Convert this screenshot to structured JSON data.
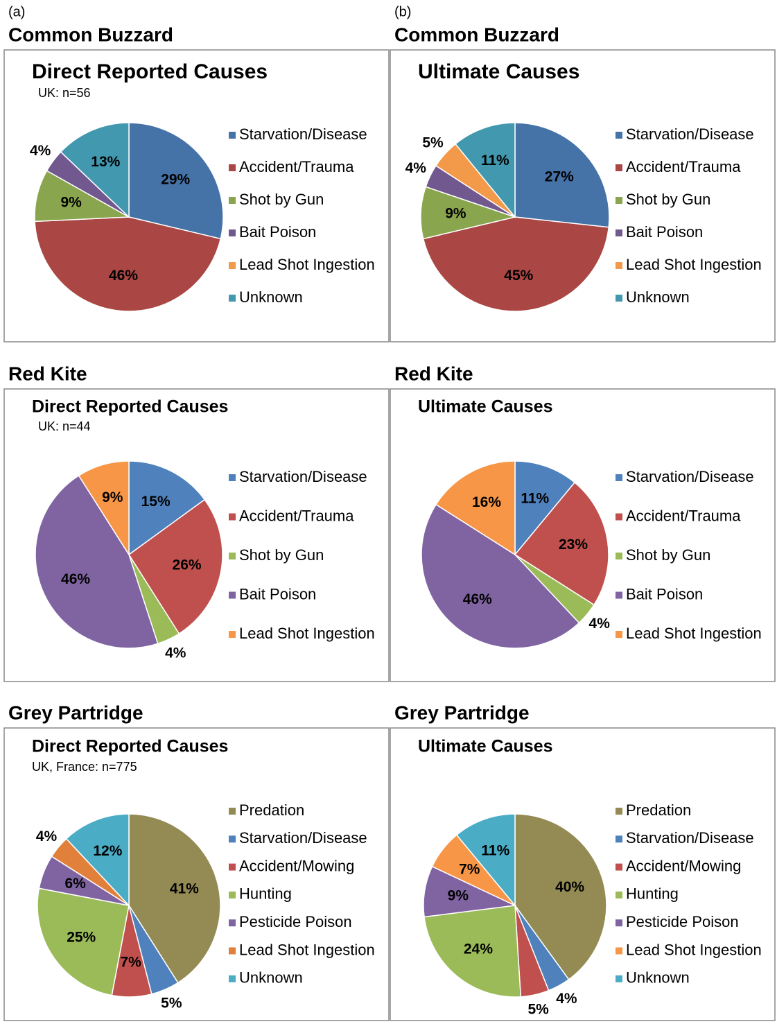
{
  "panels": [
    "(a)",
    "(b)"
  ],
  "chart_data": [
    {
      "type": "pie",
      "heading": "Common Buzzard",
      "title": "Direct Reported Causes",
      "subtitle": "UK: n=56",
      "categories": [
        "Starvation/Disease",
        "Accident/Trauma",
        "Shot by Gun",
        "Bait Poison",
        "Lead Shot Ingestion",
        "Unknown"
      ],
      "values": [
        29,
        46,
        9,
        4,
        0,
        13
      ],
      "value_labels": [
        "29%",
        "46%",
        "9%",
        "4%",
        null,
        "13%"
      ],
      "colors": [
        "#4572a7",
        "#aa4643",
        "#89a54e",
        "#71588f",
        "#f39a4a",
        "#4198af"
      ]
    },
    {
      "type": "pie",
      "heading": "Common Buzzard",
      "title": "Ultimate Causes",
      "categories": [
        "Starvation/Disease",
        "Accident/Trauma",
        "Shot by Gun",
        "Bait Poison",
        "Lead Shot Ingestion",
        "Unknown"
      ],
      "values": [
        27,
        45,
        9,
        4,
        5,
        11
      ],
      "value_labels": [
        "27%",
        "45%",
        "9%",
        "4%",
        "5%",
        "11%"
      ],
      "colors": [
        "#4572a7",
        "#aa4643",
        "#89a54e",
        "#71588f",
        "#f39a4a",
        "#4198af"
      ]
    },
    {
      "type": "pie",
      "heading": "Red Kite",
      "title": "Direct Reported Causes",
      "subtitle": "UK: n=44",
      "categories": [
        "Starvation/Disease",
        "Accident/Trauma",
        "Shot by Gun",
        "Bait Poison",
        "Lead Shot Ingestion"
      ],
      "values": [
        15,
        26,
        4,
        46,
        9
      ],
      "value_labels": [
        "15%",
        "26%",
        "4%",
        "46%",
        "9%"
      ],
      "colors": [
        "#4f81bd",
        "#c0504d",
        "#9bbb59",
        "#8064a2",
        "#f79646"
      ]
    },
    {
      "type": "pie",
      "heading": "Red Kite",
      "title": "Ultimate Causes",
      "categories": [
        "Starvation/Disease",
        "Accident/Trauma",
        "Shot by Gun",
        "Bait Poison",
        "Lead Shot Ingestion"
      ],
      "values": [
        11,
        23,
        4,
        46,
        16
      ],
      "value_labels": [
        "11%",
        "23%",
        "4%",
        "46%",
        "16%"
      ],
      "colors": [
        "#4f81bd",
        "#c0504d",
        "#9bbb59",
        "#8064a2",
        "#f79646"
      ]
    },
    {
      "type": "pie",
      "heading": "Grey Partridge",
      "title": "Direct Reported Causes",
      "subtitle": "UK, France: n=775",
      "categories": [
        "Predation",
        "Starvation/Disease",
        "Accident/Mowing",
        "Hunting",
        "Pesticide Poison",
        "Lead Shot Ingestion",
        "Unknown"
      ],
      "values": [
        41,
        5,
        7,
        25,
        6,
        4,
        12
      ],
      "value_labels": [
        "41%",
        "5%",
        "7%",
        "25%",
        "6%",
        "4%",
        "12%"
      ],
      "colors": [
        "#948a54",
        "#4f81bd",
        "#c0504d",
        "#9bbb59",
        "#8064a2",
        "#e0803a",
        "#4bacc6"
      ]
    },
    {
      "type": "pie",
      "heading": "Grey Partridge",
      "title": "Ultimate Causes",
      "categories": [
        "Predation",
        "Starvation/Disease",
        "Accident/Mowing",
        "Hunting",
        "Pesticide Poison",
        "Lead Shot Ingestion",
        "Unknown"
      ],
      "values": [
        40,
        4,
        5,
        24,
        9,
        7,
        11
      ],
      "value_labels": [
        "40%",
        "4%",
        "5%",
        "24%",
        "9%",
        "7%",
        "11%"
      ],
      "colors": [
        "#948a54",
        "#4f81bd",
        "#c0504d",
        "#9bbb59",
        "#8064a2",
        "#f79646",
        "#4bacc6"
      ]
    }
  ]
}
